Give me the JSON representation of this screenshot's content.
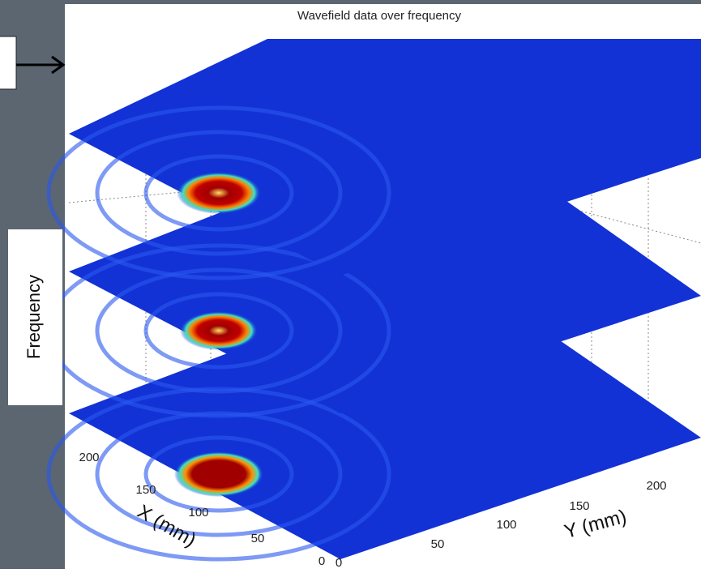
{
  "plot": {
    "title": "Wavefield data over frequency",
    "side_label": "Frequency",
    "x_axis": {
      "label": "X (mm)",
      "ticks": [
        200,
        150,
        100,
        50,
        0
      ]
    },
    "y_axis": {
      "label": "Y (mm)",
      "ticks": [
        0,
        50,
        100,
        150,
        200
      ]
    }
  }
}
